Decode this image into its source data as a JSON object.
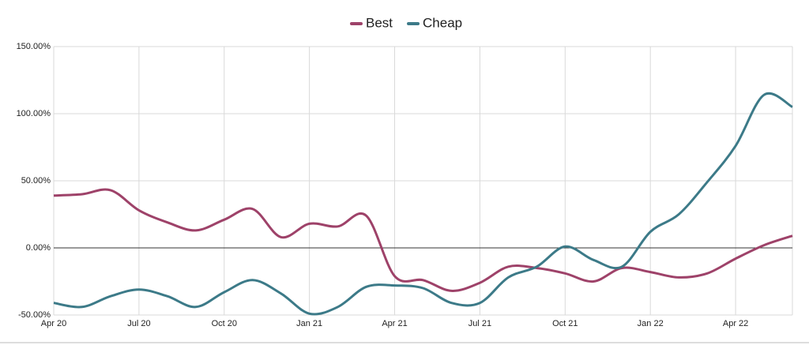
{
  "chart_data": {
    "type": "line",
    "categories": [
      "Apr 20",
      null,
      null,
      "Jul 20",
      null,
      null,
      "Oct 20",
      null,
      null,
      "Jan 21",
      null,
      null,
      "Apr 21",
      null,
      null,
      "Jul 21",
      null,
      null,
      "Oct 21",
      null,
      null,
      "Jan 22",
      null,
      null,
      "Apr 22",
      null,
      null
    ],
    "series": [
      {
        "name": "Best",
        "color": "#9e4269",
        "values": [
          39,
          40,
          43,
          28,
          19,
          13,
          21,
          29,
          8,
          18,
          16,
          24,
          -21,
          -24,
          -32,
          -26,
          -14,
          -15,
          -19,
          -25,
          -15,
          -18,
          -22,
          -19,
          -8,
          2,
          9
        ]
      },
      {
        "name": "Cheap",
        "color": "#3c7a88",
        "values": [
          -41,
          -44,
          -36,
          -31,
          -36,
          -44,
          -33,
          -24,
          -34,
          -49,
          -44,
          -29,
          -28,
          -30,
          -41,
          -41,
          -22,
          -14,
          1,
          -9,
          -14,
          12,
          25,
          49,
          76,
          114,
          105
        ]
      }
    ],
    "ylim": [
      -50,
      150
    ],
    "yticks": [
      {
        "value": -50,
        "label": "-50.00%"
      },
      {
        "value": 0,
        "label": "0.00%"
      },
      {
        "value": 50,
        "label": "50.00%"
      },
      {
        "value": 100,
        "label": "100.00%"
      },
      {
        "value": 150,
        "label": "150.00%"
      }
    ],
    "grid": true,
    "legend": "top"
  }
}
